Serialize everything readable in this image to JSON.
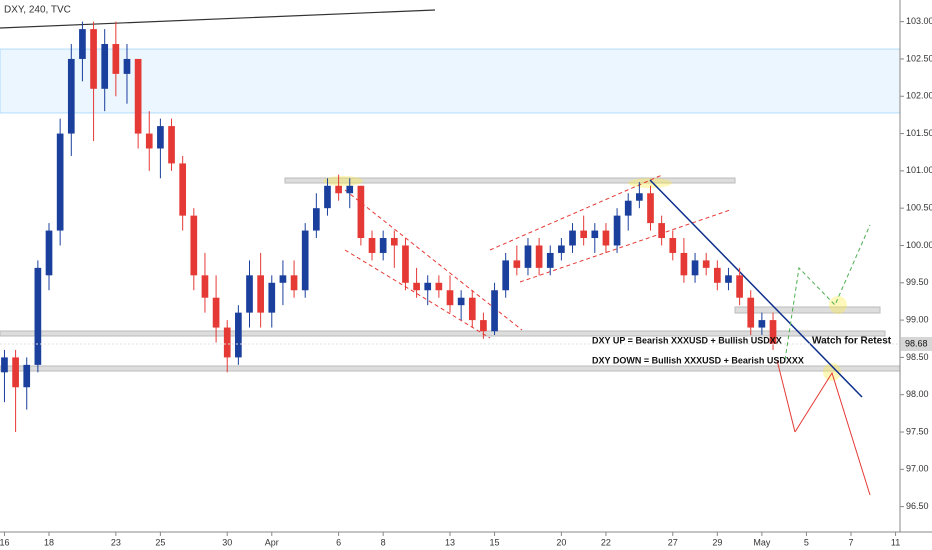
{
  "chart_data": {
    "type": "candlestick",
    "title": "DXY, 240, TVC",
    "up_color": "#1a3f9c",
    "down_color": "#e53935",
    "xlim": [
      -0.2,
      40.2
    ],
    "ylim": [
      96.16,
      103.29
    ],
    "xticks": [
      {
        "value": 0,
        "label": "16"
      },
      {
        "value": 2,
        "label": "18"
      },
      {
        "value": 5,
        "label": "23"
      },
      {
        "value": 7,
        "label": "25"
      },
      {
        "value": 10,
        "label": "30"
      },
      {
        "value": 12,
        "label": "Apr"
      },
      {
        "value": 15,
        "label": "6"
      },
      {
        "value": 17,
        "label": "8"
      },
      {
        "value": 20,
        "label": "13"
      },
      {
        "value": 22,
        "label": "15"
      },
      {
        "value": 25,
        "label": "20"
      },
      {
        "value": 27,
        "label": "22"
      },
      {
        "value": 30,
        "label": "27"
      },
      {
        "value": 32,
        "label": "29"
      },
      {
        "value": 34,
        "label": "May"
      },
      {
        "value": 36,
        "label": "5"
      },
      {
        "value": 38,
        "label": "7"
      },
      {
        "value": 40,
        "label": "11"
      }
    ],
    "yticks": [
      {
        "value": 103,
        "label": "103.00"
      },
      {
        "value": 102.5,
        "label": "102.50"
      },
      {
        "value": 102,
        "label": "102.00"
      },
      {
        "value": 101.5,
        "label": "101.50"
      },
      {
        "value": 101,
        "label": "101.00"
      },
      {
        "value": 100.5,
        "label": "100.50"
      },
      {
        "value": 100,
        "label": "100.00"
      },
      {
        "value": 99.5,
        "label": "99.50"
      },
      {
        "value": 99,
        "label": "99.00"
      },
      {
        "value": 98.5,
        "label": "98.50"
      },
      {
        "value": 98,
        "label": "98.00"
      },
      {
        "value": 97.5,
        "label": "97.50"
      },
      {
        "value": 97,
        "label": "97.00"
      },
      {
        "value": 96.5,
        "label": "96.50"
      }
    ],
    "last_price": 98.68,
    "annotations": [
      "DXY UP = Bearish XXXUSD + Bullish USDXX",
      "DXY DOWN = Bullish XXXUSD + Bearish USDXXX",
      "Watch for Retest"
    ],
    "x": [
      0,
      0.5,
      1,
      1.5,
      2,
      2.5,
      3,
      3.5,
      4,
      4.5,
      5,
      5.5,
      6,
      6.5,
      7,
      7.5,
      8,
      8.5,
      9,
      9.5,
      10,
      10.5,
      11,
      11.5,
      12,
      12.5,
      13,
      13.5,
      14,
      14.5,
      15,
      15.5,
      16,
      16.5,
      17,
      17.5,
      18,
      18.5,
      19,
      19.5,
      20,
      20.5,
      21,
      21.5,
      22,
      22.5,
      23,
      23.5,
      24,
      24.5,
      25,
      25.5,
      26,
      26.5,
      27,
      27.5,
      28,
      28.5,
      29,
      29.5,
      30,
      30.5,
      31,
      31.5,
      32,
      32.5,
      33,
      33.5,
      34,
      34.5
    ],
    "open": [
      98.3,
      98.5,
      98.1,
      98.4,
      99.6,
      100.2,
      101.5,
      102.5,
      102.9,
      102.1,
      102.7,
      102.3,
      102.5,
      101.5,
      101.3,
      101.6,
      101.1,
      100.4,
      99.6,
      99.3,
      98.9,
      98.5,
      99.1,
      99.6,
      99.1,
      99.5,
      99.6,
      99.4,
      100.2,
      100.5,
      100.8,
      100.7,
      100.8,
      100.1,
      99.9,
      100.1,
      100.0,
      99.5,
      99.4,
      99.5,
      99.4,
      99.2,
      99.3,
      99.0,
      98.85,
      99.4,
      99.8,
      99.7,
      100.0,
      99.7,
      99.9,
      100.0,
      100.2,
      100.1,
      100.2,
      100.0,
      100.4,
      100.6,
      100.7,
      100.3,
      100.1,
      99.9,
      99.6,
      99.8,
      99.7,
      99.5,
      99.6,
      99.3,
      98.9,
      99.0
    ],
    "high": [
      98.6,
      98.6,
      98.5,
      99.8,
      100.3,
      101.7,
      102.7,
      103.0,
      103.0,
      102.9,
      103.0,
      102.7,
      102.5,
      101.8,
      101.7,
      101.7,
      101.2,
      100.5,
      99.9,
      99.6,
      99.0,
      99.2,
      99.8,
      99.9,
      99.6,
      99.8,
      99.8,
      100.3,
      100.7,
      100.9,
      100.95,
      100.9,
      100.8,
      100.2,
      100.2,
      100.2,
      100.1,
      99.7,
      99.6,
      99.6,
      99.6,
      99.4,
      99.4,
      99.1,
      99.5,
      99.9,
      100.0,
      100.1,
      100.1,
      100.0,
      100.1,
      100.3,
      100.4,
      100.3,
      100.3,
      100.5,
      100.7,
      100.85,
      100.8,
      100.4,
      100.2,
      100.1,
      99.9,
      99.9,
      99.8,
      99.7,
      99.7,
      99.4,
      99.1,
      99.1
    ],
    "low": [
      97.9,
      97.5,
      97.8,
      98.3,
      99.4,
      100.0,
      101.2,
      102.2,
      101.4,
      101.8,
      102.0,
      101.9,
      101.3,
      101.0,
      100.9,
      101.0,
      100.2,
      99.4,
      99.1,
      98.7,
      98.3,
      98.4,
      98.9,
      98.9,
      98.9,
      99.2,
      99.3,
      99.3,
      100.1,
      100.4,
      100.6,
      100.5,
      100.0,
      99.8,
      99.8,
      99.7,
      99.4,
      99.3,
      99.2,
      99.3,
      99.1,
      99.0,
      98.9,
      98.75,
      98.8,
      99.3,
      99.6,
      99.6,
      99.6,
      99.6,
      99.8,
      99.9,
      100.0,
      99.9,
      99.9,
      99.9,
      100.2,
      100.5,
      100.2,
      100.0,
      99.8,
      99.5,
      99.5,
      99.6,
      99.4,
      99.4,
      99.2,
      98.8,
      98.8,
      98.6
    ],
    "close": [
      98.5,
      98.1,
      98.4,
      99.7,
      100.2,
      101.5,
      102.5,
      102.9,
      102.1,
      102.7,
      102.3,
      102.5,
      101.5,
      101.3,
      101.6,
      101.1,
      100.4,
      99.6,
      99.3,
      98.9,
      98.5,
      99.1,
      99.6,
      99.1,
      99.5,
      99.6,
      99.4,
      100.2,
      100.5,
      100.8,
      100.7,
      100.8,
      100.1,
      99.9,
      100.1,
      100.0,
      99.5,
      99.4,
      99.5,
      99.4,
      99.2,
      99.3,
      99.0,
      98.85,
      99.4,
      99.8,
      99.7,
      100.0,
      99.7,
      99.9,
      100.0,
      100.2,
      100.1,
      100.2,
      100.0,
      100.4,
      100.6,
      100.7,
      100.3,
      100.1,
      99.9,
      99.6,
      99.8,
      99.7,
      99.5,
      99.6,
      99.3,
      98.9,
      99.0,
      98.68
    ]
  }
}
